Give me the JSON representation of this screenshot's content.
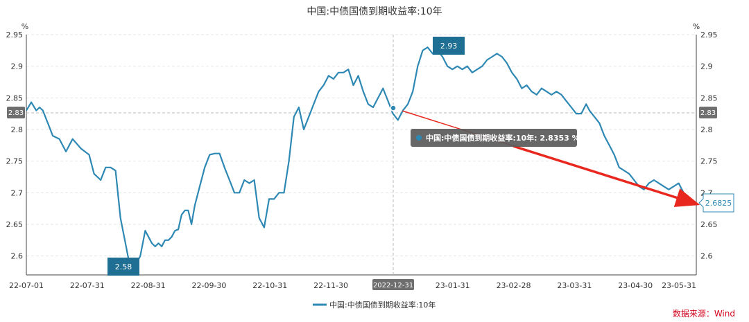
{
  "chart_data": {
    "type": "line",
    "title": "中国:中债国债到期收益率:10年",
    "y_unit_left": "%",
    "y_unit_right": "%",
    "ylim": [
      2.57,
      2.95
    ],
    "y_ticks": [
      "2.6",
      "2.65",
      "2.7",
      "2.75",
      "2.8",
      "2.85",
      "2.9",
      "2.95"
    ],
    "x_ticks": [
      "22-07-01",
      "22-07-31",
      "22-08-31",
      "22-09-30",
      "22-10-31",
      "22-11-30",
      "2022-12-31",
      "23-01-31",
      "23-02-28",
      "23-03-31",
      "23-04-30",
      "23-05-31"
    ],
    "grid": true,
    "legend_position": "bottom",
    "series": [
      {
        "name": "中国:中债国债到期收益率:10年",
        "color": "#2e88b4",
        "x": [
          0,
          3,
          6,
          8,
          10,
          13,
          16,
          20,
          24,
          28,
          33,
          38,
          41,
          45,
          48,
          51,
          54,
          57,
          60,
          63,
          66,
          69,
          72,
          74,
          76,
          78,
          80,
          82,
          83,
          84,
          86,
          88,
          90,
          92,
          94,
          96,
          98,
          100,
          102,
          105,
          108,
          111,
          114,
          117,
          120,
          123,
          126,
          129,
          132,
          135,
          138,
          141,
          144,
          147,
          150,
          153,
          156,
          159,
          162,
          165,
          168,
          171,
          174,
          177,
          180,
          183,
          186,
          189,
          192,
          195,
          198,
          201,
          204,
          207,
          210,
          213,
          216,
          219,
          222,
          225,
          228,
          231,
          234,
          237,
          240,
          243,
          246,
          249,
          252,
          255,
          258,
          261,
          264,
          267,
          270,
          273,
          276,
          279,
          282,
          285,
          288,
          291,
          294,
          297,
          300,
          303,
          306,
          309,
          312,
          315,
          318,
          321,
          324,
          327,
          330,
          333,
          336,
          339,
          341,
          344,
          347,
          350,
          353,
          356,
          359,
          362,
          365,
          368,
          371,
          374,
          377,
          380,
          383,
          386,
          389,
          392,
          395,
          398,
          401,
          404
        ],
        "values": [
          2.83,
          2.843,
          2.83,
          2.835,
          2.83,
          2.81,
          2.79,
          2.785,
          2.765,
          2.785,
          2.77,
          2.76,
          2.73,
          2.72,
          2.74,
          2.74,
          2.735,
          2.66,
          2.62,
          2.58,
          2.585,
          2.6,
          2.64,
          2.63,
          2.62,
          2.615,
          2.62,
          2.615,
          2.62,
          2.625,
          2.625,
          2.63,
          2.64,
          2.642,
          2.665,
          2.672,
          2.672,
          2.65,
          2.68,
          2.71,
          2.74,
          2.76,
          2.762,
          2.762,
          2.74,
          2.72,
          2.7,
          2.7,
          2.72,
          2.715,
          2.72,
          2.66,
          2.645,
          2.69,
          2.69,
          2.7,
          2.7,
          2.75,
          2.82,
          2.835,
          2.8,
          2.82,
          2.84,
          2.86,
          2.87,
          2.885,
          2.88,
          2.89,
          2.89,
          2.895,
          2.87,
          2.885,
          2.86,
          2.84,
          2.835,
          2.85,
          2.865,
          2.845,
          2.825,
          2.815,
          2.83,
          2.84,
          2.86,
          2.9,
          2.925,
          2.93,
          2.92,
          2.925,
          2.915,
          2.9,
          2.895,
          2.9,
          2.895,
          2.9,
          2.89,
          2.895,
          2.9,
          2.91,
          2.915,
          2.92,
          2.915,
          2.905,
          2.89,
          2.88,
          2.865,
          2.87,
          2.86,
          2.855,
          2.865,
          2.86,
          2.855,
          2.86,
          2.855,
          2.845,
          2.835,
          2.825,
          2.825,
          2.84,
          2.83,
          2.82,
          2.81,
          2.79,
          2.775,
          2.76,
          2.74,
          2.735,
          2.73,
          2.72,
          2.71,
          2.705,
          2.715,
          2.72,
          2.715,
          2.71,
          2.705,
          2.71,
          2.715,
          2.7,
          2.69,
          2.6825
        ]
      }
    ],
    "annotations": {
      "min_label": "2.58",
      "max_label": "2.93",
      "last_value_label": "2.6825",
      "axis_pointer_left": "2.83",
      "axis_pointer_right": "2.83",
      "tooltip_text": "中国:中债国债到期收益率:10年: 2.8353  %",
      "crosshair_x_label": "2022-12-31"
    }
  },
  "source_label": "数据来源：Wind"
}
